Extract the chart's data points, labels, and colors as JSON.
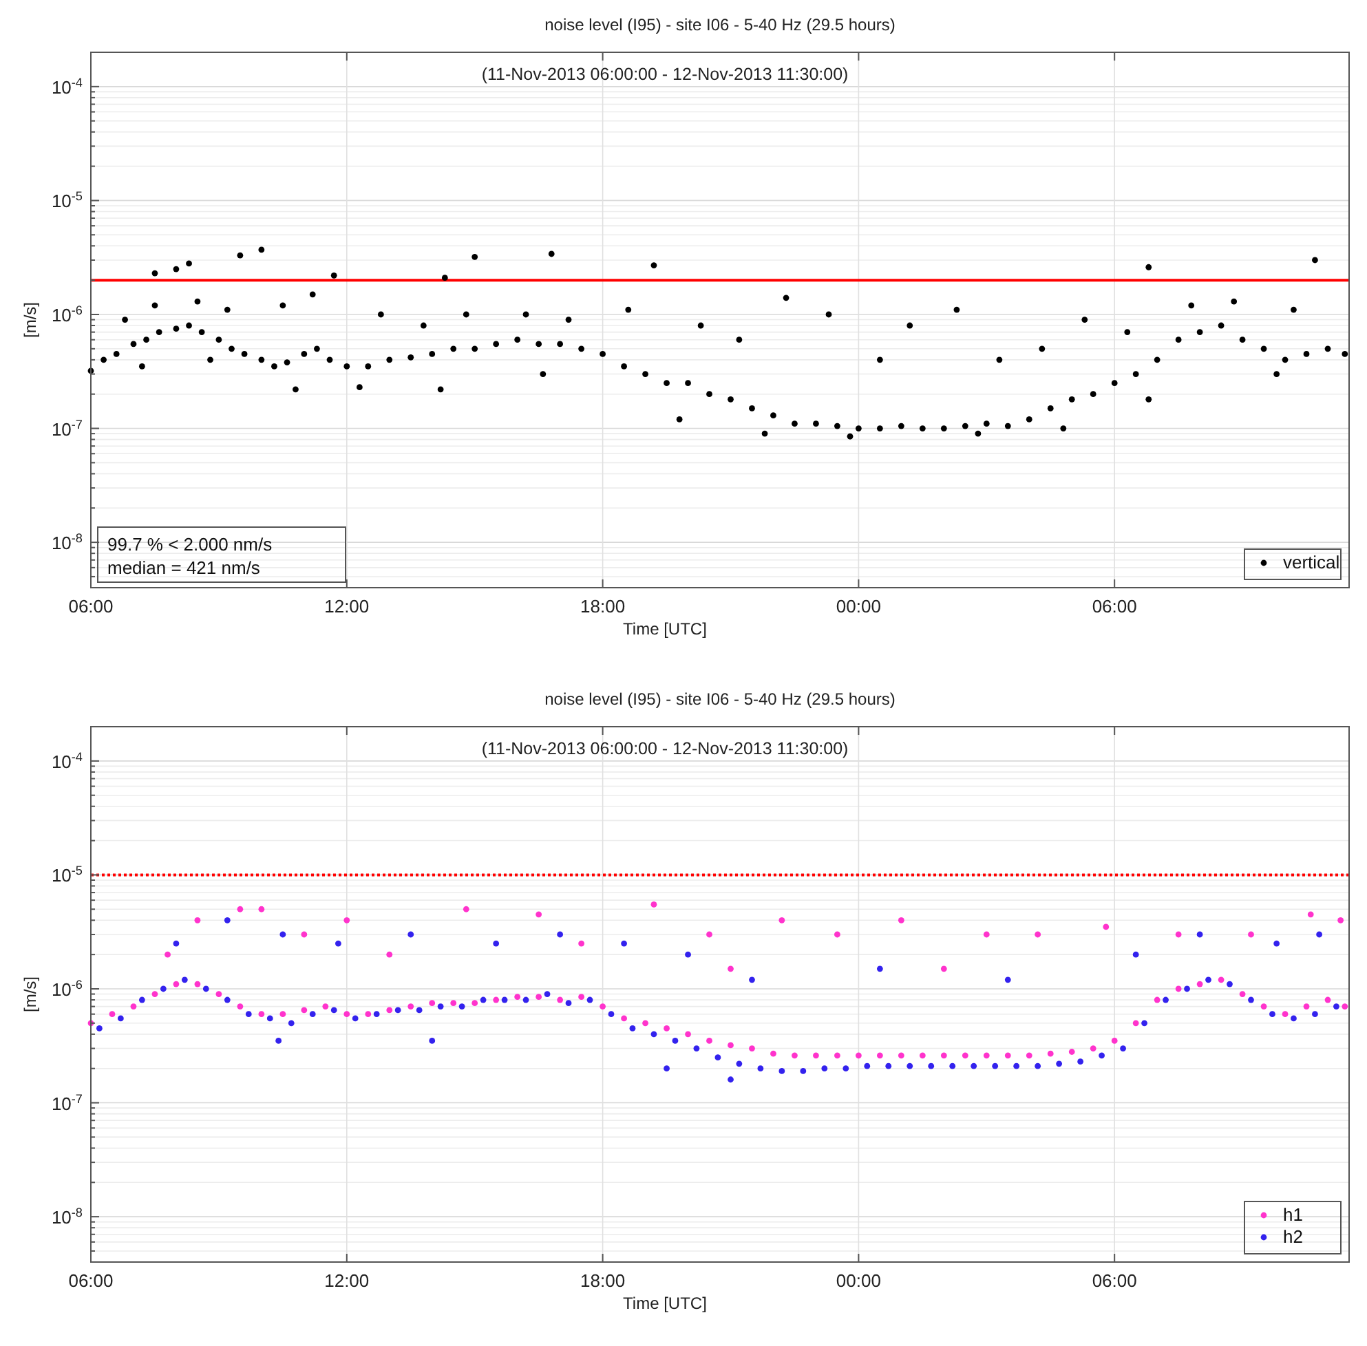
{
  "chart_data": [
    {
      "type": "scatter",
      "title": "noise level (I95)  -  site I06  -  5-40 Hz (29.5 hours)",
      "subtitle": "(11-Nov-2013 06:00:00 - 12-Nov-2013 11:30:00)",
      "xlabel": "Time [UTC]",
      "ylabel": "[m/s]",
      "log": "y",
      "grid": true,
      "legend": "bottom right",
      "marker": "circle",
      "xlim": [
        "2013-11-11T06:00",
        "2013-11-12T11:30"
      ],
      "xticks": [
        {
          "value": "2013-11-11T06:00",
          "label": "06:00"
        },
        {
          "value": "2013-11-11T12:00",
          "label": "12:00"
        },
        {
          "value": "2013-11-11T18:00",
          "label": "18:00"
        },
        {
          "value": "2013-11-12T00:00",
          "label": "00:00"
        },
        {
          "value": "2013-11-12T06:00",
          "label": "06:00"
        }
      ],
      "ylim": [
        4e-09,
        0.0002
      ],
      "yticks": [
        {
          "value": 5e-09,
          "label": null
        },
        {
          "value": 6e-09,
          "label": null
        },
        {
          "value": 7e-09,
          "label": null
        },
        {
          "value": 8e-09,
          "label": null
        },
        {
          "value": 9e-09,
          "label": null
        },
        {
          "value": 1e-08,
          "label": "10$^{-8}$"
        },
        {
          "value": 2e-08,
          "label": null
        },
        {
          "value": 3e-08,
          "label": null
        },
        {
          "value": 4e-08,
          "label": null
        },
        {
          "value": 5e-08,
          "label": null
        },
        {
          "value": 6e-08,
          "label": null
        },
        {
          "value": 7e-08,
          "label": null
        },
        {
          "value": 8e-08,
          "label": null
        },
        {
          "value": 9e-08,
          "label": null
        },
        {
          "value": 1e-07,
          "label": "10$^{-7}$"
        },
        {
          "value": 2e-07,
          "label": null
        },
        {
          "value": 3e-07,
          "label": null
        },
        {
          "value": 4e-07,
          "label": null
        },
        {
          "value": 5e-07,
          "label": null
        },
        {
          "value": 6e-07,
          "label": null
        },
        {
          "value": 7e-07,
          "label": null
        },
        {
          "value": 8e-07,
          "label": null
        },
        {
          "value": 9e-07,
          "label": null
        },
        {
          "value": 1e-06,
          "label": "10$^{-6}$"
        },
        {
          "value": 2e-06,
          "label": null
        },
        {
          "value": 3e-06,
          "label": null
        },
        {
          "value": 4e-06,
          "label": null
        },
        {
          "value": 5e-06,
          "label": null
        },
        {
          "value": 6e-06,
          "label": null
        },
        {
          "value": 7e-06,
          "label": null
        },
        {
          "value": 8e-06,
          "label": null
        },
        {
          "value": 9e-06,
          "label": null
        },
        {
          "value": 1e-05,
          "label": "10$^{-5}$"
        },
        {
          "value": 2e-05,
          "label": null
        },
        {
          "value": 3e-05,
          "label": null
        },
        {
          "value": 4e-05,
          "label": null
        },
        {
          "value": 5e-05,
          "label": null
        },
        {
          "value": 6e-05,
          "label": null
        },
        {
          "value": 7e-05,
          "label": null
        },
        {
          "value": 8e-05,
          "label": null
        },
        {
          "value": 9e-05,
          "label": null
        },
        {
          "value": 0.0001,
          "label": "10$^{-4}$"
        },
        {
          "value": 0.0002,
          "label": null
        }
      ],
      "ref_lines": [
        {
          "axis": "y",
          "value": 2e-06,
          "color": "#ff0000",
          "line_style": "solid"
        }
      ],
      "annotations": [
        "99.7 % < 2.000 nm/s",
        "median = 421 nm/s"
      ],
      "series": [
        {
          "name": "vertical",
          "color": "#000000",
          "x": [
            "2013-11-11T06:00",
            "2013-11-11T06:18",
            "2013-11-11T06:36",
            "2013-11-11T07:00",
            "2013-11-11T07:18",
            "2013-11-11T07:36",
            "2013-11-11T08:00",
            "2013-11-11T08:18",
            "2013-11-11T08:36",
            "2013-11-11T09:00",
            "2013-11-11T09:18",
            "2013-11-11T09:36",
            "2013-11-11T10:00",
            "2013-11-11T10:18",
            "2013-11-11T10:36",
            "2013-11-11T11:00",
            "2013-11-11T11:18",
            "2013-11-11T11:36",
            "2013-11-11T12:00",
            "2013-11-11T12:30",
            "2013-11-11T13:00",
            "2013-11-11T13:30",
            "2013-11-11T14:00",
            "2013-11-11T14:30",
            "2013-11-11T15:00",
            "2013-11-11T15:30",
            "2013-11-11T16:00",
            "2013-11-11T16:30",
            "2013-11-11T17:00",
            "2013-11-11T17:30",
            "2013-11-11T18:00",
            "2013-11-11T18:30",
            "2013-11-11T19:00",
            "2013-11-11T19:30",
            "2013-11-11T20:00",
            "2013-11-11T20:30",
            "2013-11-11T21:00",
            "2013-11-11T21:30",
            "2013-11-11T22:00",
            "2013-11-11T22:30",
            "2013-11-11T23:00",
            "2013-11-11T23:30",
            "2013-11-12T00:00",
            "2013-11-12T00:30",
            "2013-11-12T01:00",
            "2013-11-12T01:30",
            "2013-11-12T02:00",
            "2013-11-12T02:30",
            "2013-11-12T03:00",
            "2013-11-12T03:30",
            "2013-11-12T04:00",
            "2013-11-12T04:30",
            "2013-11-12T05:00",
            "2013-11-12T05:30",
            "2013-11-12T06:00",
            "2013-11-12T06:30",
            "2013-11-12T07:00",
            "2013-11-12T07:30",
            "2013-11-12T08:00",
            "2013-11-12T08:30",
            "2013-11-12T09:00",
            "2013-11-12T09:30",
            "2013-11-12T10:00",
            "2013-11-12T10:30",
            "2013-11-12T11:00",
            "2013-11-12T11:24",
            "2013-11-11T06:48",
            "2013-11-11T07:30",
            "2013-11-11T08:30",
            "2013-11-11T09:12",
            "2013-11-11T10:30",
            "2013-11-11T11:12",
            "2013-11-11T12:48",
            "2013-11-11T13:48",
            "2013-11-11T14:48",
            "2013-11-11T16:12",
            "2013-11-11T17:12",
            "2013-11-11T18:36",
            "2013-11-11T20:18",
            "2013-11-11T21:12",
            "2013-11-11T22:18",
            "2013-11-11T23:18",
            "2013-11-12T00:30",
            "2013-11-12T01:12",
            "2013-11-12T02:18",
            "2013-11-12T03:18",
            "2013-11-12T04:18",
            "2013-11-12T05:18",
            "2013-11-12T06:18",
            "2013-11-12T07:48",
            "2013-11-12T08:48",
            "2013-11-12T10:12",
            "2013-11-11T07:12",
            "2013-11-11T08:48",
            "2013-11-11T10:48",
            "2013-11-11T12:18",
            "2013-11-11T14:12",
            "2013-11-11T16:36",
            "2013-11-11T19:48",
            "2013-11-11T21:48",
            "2013-11-11T23:48",
            "2013-11-12T02:48",
            "2013-11-12T04:48",
            "2013-11-12T06:48",
            "2013-11-12T09:48",
            "2013-11-11T07:30",
            "2013-11-11T08:00",
            "2013-11-11T08:18",
            "2013-11-11T09:30",
            "2013-11-11T10:00",
            "2013-11-11T15:00",
            "2013-11-11T16:48",
            "2013-11-11T19:12",
            "2013-11-12T06:48",
            "2013-11-12T10:42",
            "2013-11-11T11:42",
            "2013-11-11T14:18"
          ],
          "values": [
            3.2e-07,
            4e-07,
            4.5e-07,
            5.5e-07,
            6e-07,
            7e-07,
            7.5e-07,
            8e-07,
            7e-07,
            6e-07,
            5e-07,
            4.5e-07,
            4e-07,
            3.5e-07,
            3.8e-07,
            4.5e-07,
            5e-07,
            4e-07,
            3.5e-07,
            3.5e-07,
            4e-07,
            4.2e-07,
            4.5e-07,
            5e-07,
            5e-07,
            5.5e-07,
            6e-07,
            5.5e-07,
            5.5e-07,
            5e-07,
            4.5e-07,
            3.5e-07,
            3e-07,
            2.5e-07,
            2.5e-07,
            2e-07,
            1.8e-07,
            1.5e-07,
            1.3e-07,
            1.1e-07,
            1.1e-07,
            1.05e-07,
            1e-07,
            1e-07,
            1.05e-07,
            1e-07,
            1e-07,
            1.05e-07,
            1.1e-07,
            1.05e-07,
            1.2e-07,
            1.5e-07,
            1.8e-07,
            2e-07,
            2.5e-07,
            3e-07,
            4e-07,
            6e-07,
            7e-07,
            8e-07,
            6e-07,
            5e-07,
            4e-07,
            4.5e-07,
            5e-07,
            4.5e-07,
            9e-07,
            1.2e-06,
            1.3e-06,
            1.1e-06,
            1.2e-06,
            1.5e-06,
            1e-06,
            8e-07,
            1e-06,
            1e-06,
            9e-07,
            1.1e-06,
            8e-07,
            6e-07,
            1.4e-06,
            1e-06,
            4e-07,
            8e-07,
            1.1e-06,
            4e-07,
            5e-07,
            9e-07,
            7e-07,
            1.2e-06,
            1.3e-06,
            1.1e-06,
            3.5e-07,
            4e-07,
            2.2e-07,
            2.3e-07,
            2.2e-07,
            3e-07,
            1.2e-07,
            9e-08,
            8.5e-08,
            9e-08,
            1e-07,
            1.8e-07,
            3e-07,
            2.3e-06,
            2.5e-06,
            2.8e-06,
            3.3e-06,
            3.7e-06,
            3.2e-06,
            3.4e-06,
            2.7e-06,
            2.6e-06,
            3e-06,
            2.2e-06,
            2.1e-06
          ]
        }
      ]
    },
    {
      "type": "scatter",
      "title": "noise level (I95)  -  site I06  -  5-40 Hz (29.5 hours)",
      "subtitle": "(11-Nov-2013 06:00:00 - 12-Nov-2013 11:30:00)",
      "xlabel": "Time [UTC]",
      "ylabel": "[m/s]",
      "log": "y",
      "grid": true,
      "legend": "bottom right",
      "marker": "circle",
      "xlim": [
        "2013-11-11T06:00",
        "2013-11-12T11:30"
      ],
      "xticks": [
        {
          "value": "2013-11-11T06:00",
          "label": "06:00"
        },
        {
          "value": "2013-11-11T12:00",
          "label": "12:00"
        },
        {
          "value": "2013-11-11T18:00",
          "label": "18:00"
        },
        {
          "value": "2013-11-12T00:00",
          "label": "00:00"
        },
        {
          "value": "2013-11-12T06:00",
          "label": "06:00"
        }
      ],
      "ylim": [
        4e-09,
        0.0002
      ],
      "yticks": [
        {
          "value": 5e-09,
          "label": null
        },
        {
          "value": 6e-09,
          "label": null
        },
        {
          "value": 7e-09,
          "label": null
        },
        {
          "value": 8e-09,
          "label": null
        },
        {
          "value": 9e-09,
          "label": null
        },
        {
          "value": 1e-08,
          "label": "10$^{-8}$"
        },
        {
          "value": 2e-08,
          "label": null
        },
        {
          "value": 3e-08,
          "label": null
        },
        {
          "value": 4e-08,
          "label": null
        },
        {
          "value": 5e-08,
          "label": null
        },
        {
          "value": 6e-08,
          "label": null
        },
        {
          "value": 7e-08,
          "label": null
        },
        {
          "value": 8e-08,
          "label": null
        },
        {
          "value": 9e-08,
          "label": null
        },
        {
          "value": 1e-07,
          "label": "10$^{-7}$"
        },
        {
          "value": 2e-07,
          "label": null
        },
        {
          "value": 3e-07,
          "label": null
        },
        {
          "value": 4e-07,
          "label": null
        },
        {
          "value": 5e-07,
          "label": null
        },
        {
          "value": 6e-07,
          "label": null
        },
        {
          "value": 7e-07,
          "label": null
        },
        {
          "value": 8e-07,
          "label": null
        },
        {
          "value": 9e-07,
          "label": null
        },
        {
          "value": 1e-06,
          "label": "10$^{-6}$"
        },
        {
          "value": 2e-06,
          "label": null
        },
        {
          "value": 3e-06,
          "label": null
        },
        {
          "value": 4e-06,
          "label": null
        },
        {
          "value": 5e-06,
          "label": null
        },
        {
          "value": 6e-06,
          "label": null
        },
        {
          "value": 7e-06,
          "label": null
        },
        {
          "value": 8e-06,
          "label": null
        },
        {
          "value": 9e-06,
          "label": null
        },
        {
          "value": 1e-05,
          "label": "10$^{-5}$"
        },
        {
          "value": 2e-05,
          "label": null
        },
        {
          "value": 3e-05,
          "label": null
        },
        {
          "value": 4e-05,
          "label": null
        },
        {
          "value": 5e-05,
          "label": null
        },
        {
          "value": 6e-05,
          "label": null
        },
        {
          "value": 7e-05,
          "label": null
        },
        {
          "value": 8e-05,
          "label": null
        },
        {
          "value": 9e-05,
          "label": null
        },
        {
          "value": 0.0001,
          "label": "10$^{-4}$"
        },
        {
          "value": 0.0002,
          "label": null
        }
      ],
      "ref_lines": [
        {
          "axis": "y",
          "value": 1e-05,
          "color": "#ff0000",
          "line_style": "dotted"
        }
      ],
      "series": [
        {
          "name": "h1",
          "color": "#ff33cc",
          "x": [
            "2013-11-11T06:00",
            "2013-11-11T06:30",
            "2013-11-11T07:00",
            "2013-11-11T07:30",
            "2013-11-11T08:00",
            "2013-11-11T08:30",
            "2013-11-11T09:00",
            "2013-11-11T09:30",
            "2013-11-11T10:00",
            "2013-11-11T10:30",
            "2013-11-11T11:00",
            "2013-11-11T11:30",
            "2013-11-11T12:00",
            "2013-11-11T12:30",
            "2013-11-11T13:00",
            "2013-11-11T13:30",
            "2013-11-11T14:00",
            "2013-11-11T14:30",
            "2013-11-11T15:00",
            "2013-11-11T15:30",
            "2013-11-11T16:00",
            "2013-11-11T16:30",
            "2013-11-11T17:00",
            "2013-11-11T17:30",
            "2013-11-11T18:00",
            "2013-11-11T18:30",
            "2013-11-11T19:00",
            "2013-11-11T19:30",
            "2013-11-11T20:00",
            "2013-11-11T20:30",
            "2013-11-11T21:00",
            "2013-11-11T21:30",
            "2013-11-11T22:00",
            "2013-11-11T22:30",
            "2013-11-11T23:00",
            "2013-11-11T23:30",
            "2013-11-12T00:00",
            "2013-11-12T00:30",
            "2013-11-12T01:00",
            "2013-11-12T01:30",
            "2013-11-12T02:00",
            "2013-11-12T02:30",
            "2013-11-12T03:00",
            "2013-11-12T03:30",
            "2013-11-12T04:00",
            "2013-11-12T04:30",
            "2013-11-12T05:00",
            "2013-11-12T05:30",
            "2013-11-12T06:00",
            "2013-11-12T06:30",
            "2013-11-12T07:00",
            "2013-11-12T07:30",
            "2013-11-12T08:00",
            "2013-11-12T08:30",
            "2013-11-12T09:00",
            "2013-11-12T09:30",
            "2013-11-12T10:00",
            "2013-11-12T10:30",
            "2013-11-12T11:00",
            "2013-11-12T11:24",
            "2013-11-11T07:48",
            "2013-11-11T08:30",
            "2013-11-11T09:30",
            "2013-11-11T10:00",
            "2013-11-11T11:00",
            "2013-11-11T12:00",
            "2013-11-11T14:48",
            "2013-11-11T16:30",
            "2013-11-11T19:12",
            "2013-11-11T20:30",
            "2013-11-11T22:12",
            "2013-11-11T23:30",
            "2013-11-12T01:00",
            "2013-11-12T03:00",
            "2013-11-12T04:12",
            "2013-11-12T05:48",
            "2013-11-12T07:30",
            "2013-11-12T09:12",
            "2013-11-12T10:36",
            "2013-11-12T11:18",
            "2013-11-11T13:00",
            "2013-11-11T17:30",
            "2013-11-11T21:00",
            "2013-11-12T02:00"
          ],
          "values": [
            5e-07,
            6e-07,
            7e-07,
            9e-07,
            1.1e-06,
            1.1e-06,
            9e-07,
            7e-07,
            6e-07,
            6e-07,
            6.5e-07,
            7e-07,
            6e-07,
            6e-07,
            6.5e-07,
            7e-07,
            7.5e-07,
            7.5e-07,
            7.5e-07,
            8e-07,
            8.5e-07,
            8.5e-07,
            8e-07,
            8.5e-07,
            7e-07,
            5.5e-07,
            5e-07,
            4.5e-07,
            4e-07,
            3.5e-07,
            3.2e-07,
            3e-07,
            2.7e-07,
            2.6e-07,
            2.6e-07,
            2.6e-07,
            2.6e-07,
            2.6e-07,
            2.6e-07,
            2.6e-07,
            2.6e-07,
            2.6e-07,
            2.6e-07,
            2.6e-07,
            2.6e-07,
            2.7e-07,
            2.8e-07,
            3e-07,
            3.5e-07,
            5e-07,
            8e-07,
            1e-06,
            1.1e-06,
            1.2e-06,
            9e-07,
            7e-07,
            6e-07,
            7e-07,
            8e-07,
            7e-07,
            2e-06,
            4e-06,
            5e-06,
            5e-06,
            3e-06,
            4e-06,
            5e-06,
            4.5e-06,
            5.5e-06,
            3e-06,
            4e-06,
            3e-06,
            4e-06,
            3e-06,
            3e-06,
            3.5e-06,
            3e-06,
            3e-06,
            4.5e-06,
            4e-06,
            2e-06,
            2.5e-06,
            1.5e-06,
            1.5e-06
          ]
        },
        {
          "name": "h2",
          "color": "#3322ee",
          "x": [
            "2013-11-11T06:12",
            "2013-11-11T06:42",
            "2013-11-11T07:12",
            "2013-11-11T07:42",
            "2013-11-11T08:12",
            "2013-11-11T08:42",
            "2013-11-11T09:12",
            "2013-11-11T09:42",
            "2013-11-11T10:12",
            "2013-11-11T10:42",
            "2013-11-11T11:12",
            "2013-11-11T11:42",
            "2013-11-11T12:12",
            "2013-11-11T12:42",
            "2013-11-11T13:12",
            "2013-11-11T13:42",
            "2013-11-11T14:12",
            "2013-11-11T14:42",
            "2013-11-11T15:12",
            "2013-11-11T15:42",
            "2013-11-11T16:12",
            "2013-11-11T16:42",
            "2013-11-11T17:12",
            "2013-11-11T17:42",
            "2013-11-11T18:12",
            "2013-11-11T18:42",
            "2013-11-11T19:12",
            "2013-11-11T19:42",
            "2013-11-11T20:12",
            "2013-11-11T20:42",
            "2013-11-11T21:12",
            "2013-11-11T21:42",
            "2013-11-11T22:12",
            "2013-11-11T22:42",
            "2013-11-11T23:12",
            "2013-11-11T23:42",
            "2013-11-12T00:12",
            "2013-11-12T00:42",
            "2013-11-12T01:12",
            "2013-11-12T01:42",
            "2013-11-12T02:12",
            "2013-11-12T02:42",
            "2013-11-12T03:12",
            "2013-11-12T03:42",
            "2013-11-12T04:12",
            "2013-11-12T04:42",
            "2013-11-12T05:12",
            "2013-11-12T05:42",
            "2013-11-12T06:12",
            "2013-11-12T06:42",
            "2013-11-12T07:12",
            "2013-11-12T07:42",
            "2013-11-12T08:12",
            "2013-11-12T08:42",
            "2013-11-12T09:12",
            "2013-11-12T09:42",
            "2013-11-12T10:12",
            "2013-11-12T10:42",
            "2013-11-12T11:12",
            "2013-11-11T08:00",
            "2013-11-11T09:12",
            "2013-11-11T10:30",
            "2013-11-11T11:48",
            "2013-11-11T13:30",
            "2013-11-11T15:30",
            "2013-11-11T17:00",
            "2013-11-11T18:30",
            "2013-11-11T20:00",
            "2013-11-11T21:30",
            "2013-11-12T00:30",
            "2013-11-12T03:30",
            "2013-11-12T06:30",
            "2013-11-12T08:00",
            "2013-11-12T09:48",
            "2013-11-12T10:48",
            "2013-11-11T10:24",
            "2013-11-11T14:00",
            "2013-11-11T19:30",
            "2013-11-11T21:00"
          ],
          "values": [
            4.5e-07,
            5.5e-07,
            8e-07,
            1e-06,
            1.2e-06,
            1e-06,
            8e-07,
            6e-07,
            5.5e-07,
            5e-07,
            6e-07,
            6.5e-07,
            5.5e-07,
            6e-07,
            6.5e-07,
            6.5e-07,
            7e-07,
            7e-07,
            8e-07,
            8e-07,
            8e-07,
            9e-07,
            7.5e-07,
            8e-07,
            6e-07,
            4.5e-07,
            4e-07,
            3.5e-07,
            3e-07,
            2.5e-07,
            2.2e-07,
            2e-07,
            1.9e-07,
            1.9e-07,
            2e-07,
            2e-07,
            2.1e-07,
            2.1e-07,
            2.1e-07,
            2.1e-07,
            2.1e-07,
            2.1e-07,
            2.1e-07,
            2.1e-07,
            2.1e-07,
            2.2e-07,
            2.3e-07,
            2.6e-07,
            3e-07,
            5e-07,
            8e-07,
            1e-06,
            1.2e-06,
            1.1e-06,
            8e-07,
            6e-07,
            5.5e-07,
            6e-07,
            7e-07,
            2.5e-06,
            4e-06,
            3e-06,
            2.5e-06,
            3e-06,
            2.5e-06,
            3e-06,
            2.5e-06,
            2e-06,
            1.2e-06,
            1.5e-06,
            1.2e-06,
            2e-06,
            3e-06,
            2.5e-06,
            3e-06,
            3.5e-07,
            3.5e-07,
            2e-07,
            1.6e-07
          ]
        }
      ]
    }
  ]
}
